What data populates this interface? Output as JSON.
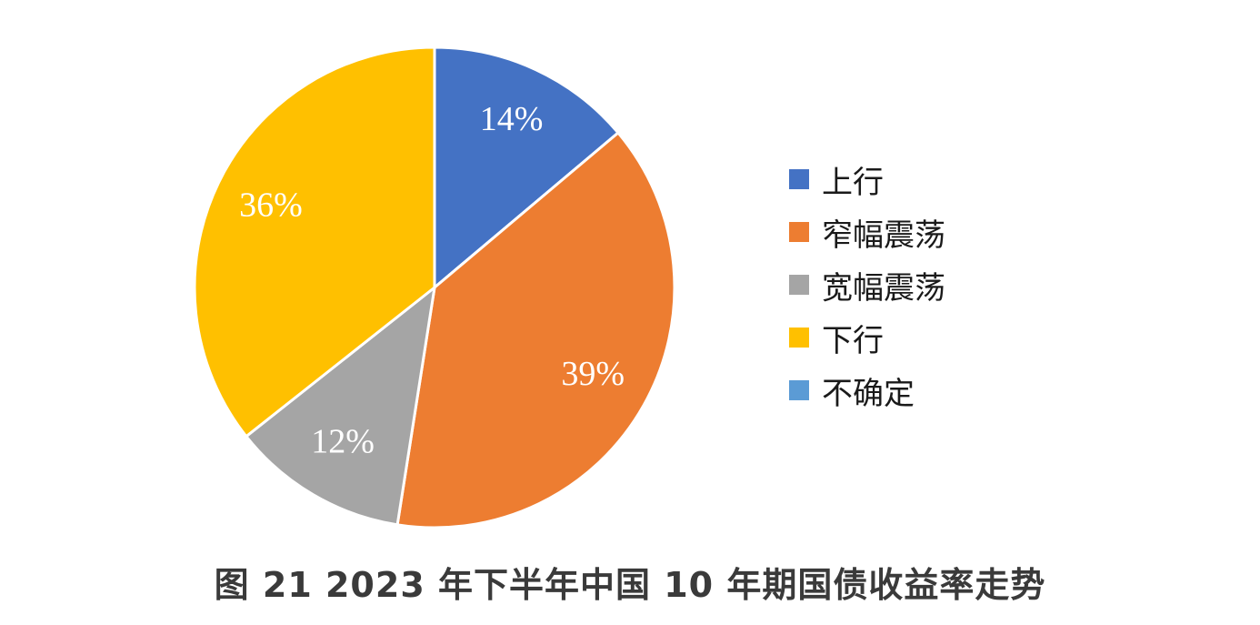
{
  "chart_data": {
    "type": "pie",
    "title": "",
    "categories": [
      "上行",
      "窄幅震荡",
      "宽幅震荡",
      "下行",
      "不确定"
    ],
    "values": [
      14,
      39,
      12,
      36,
      0
    ],
    "value_labels": [
      "14%",
      "39%",
      "12%",
      "36%",
      ""
    ],
    "colors": [
      "#4472C4",
      "#ED7D31",
      "#A5A5A5",
      "#FFC000",
      "#5B9BD5"
    ],
    "start_angle_deg": 0,
    "direction": "clockwise",
    "legend_position": "right"
  },
  "caption": "图 21 2023 年下半年中国 10 年期国债收益率走势"
}
